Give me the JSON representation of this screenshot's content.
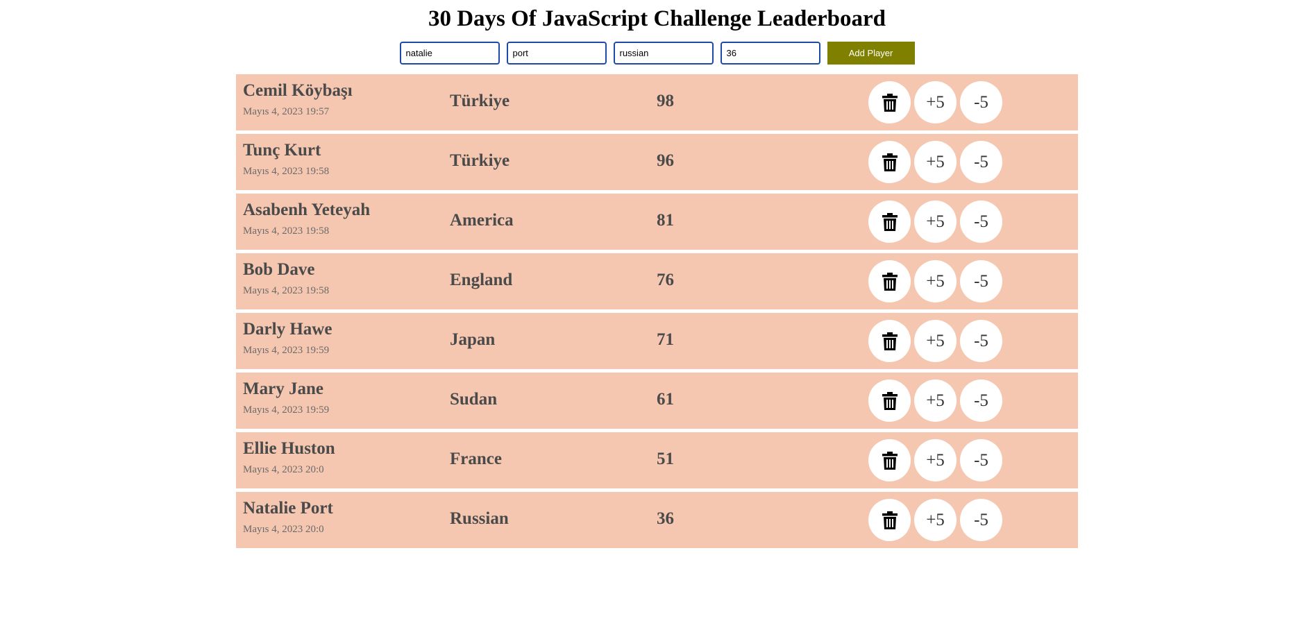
{
  "header": {
    "title": "30 Days Of JavaScript Challenge Leaderboard"
  },
  "form": {
    "first_name": "natalie",
    "last_name": "port",
    "country": "russian",
    "score": "36",
    "add_label": "Add Player"
  },
  "players": [
    {
      "name": "Cemil Köybaşı",
      "date": "Mayıs 4, 2023 19:57",
      "country": "Türkiye",
      "score": "98"
    },
    {
      "name": "Tunç Kurt",
      "date": "Mayıs 4, 2023 19:58",
      "country": "Türkiye",
      "score": "96"
    },
    {
      "name": "Asabenh Yeteyah",
      "date": "Mayıs 4, 2023 19:58",
      "country": "America",
      "score": "81"
    },
    {
      "name": "Bob Dave",
      "date": "Mayıs 4, 2023 19:58",
      "country": "England",
      "score": "76"
    },
    {
      "name": "Darly Hawe",
      "date": "Mayıs 4, 2023 19:59",
      "country": "Japan",
      "score": "71"
    },
    {
      "name": "Mary Jane",
      "date": "Mayıs 4, 2023 19:59",
      "country": "Sudan",
      "score": "61"
    },
    {
      "name": "Ellie Huston",
      "date": "Mayıs 4, 2023 20:0",
      "country": "France",
      "score": "51"
    },
    {
      "name": "Natalie Port",
      "date": "Mayıs 4, 2023 20:0",
      "country": "Russian",
      "score": "36"
    }
  ],
  "row_actions": {
    "delete_icon": "trash-icon",
    "plus_label": "+5",
    "minus_label": "-5"
  },
  "colors": {
    "row_background": "#f5c7b0",
    "add_button": "#808000",
    "input_border": "#1e49a8"
  }
}
